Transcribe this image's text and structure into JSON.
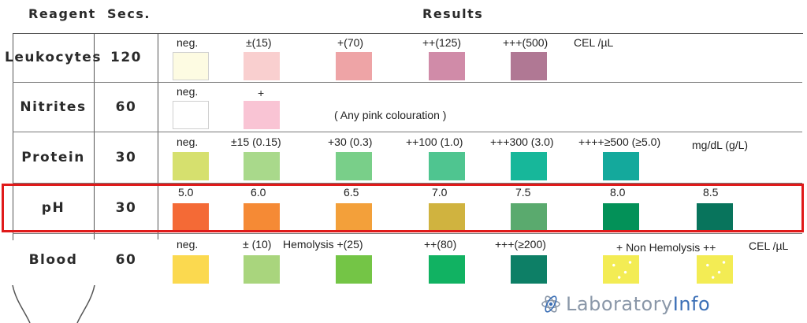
{
  "header": {
    "reagent": "Reagent",
    "secs": "Secs.",
    "results": "Results"
  },
  "rows": [
    {
      "reagent": "Leukocytes",
      "secs": "120",
      "results": [
        {
          "label": "neg.",
          "color": "#fdfbe2"
        },
        {
          "label": "±(15)",
          "color": "#f9cfcf"
        },
        {
          "label": "+(70)",
          "color": "#eea4a6"
        },
        {
          "label": "++(125)",
          "color": "#d08ba8"
        },
        {
          "label": "+++(500)",
          "color": "#b07894"
        }
      ],
      "unit": "CEL /µL"
    },
    {
      "reagent": "Nitrites",
      "secs": "60",
      "results": [
        {
          "label": "neg.",
          "color": "#ffffff"
        },
        {
          "label": "+",
          "color": "#f9c4d4"
        }
      ],
      "note": "( Any pink colouration )"
    },
    {
      "reagent": "Protein",
      "secs": "30",
      "results": [
        {
          "label": "neg.",
          "color": "#d6e06e"
        },
        {
          "label": "±15 (0.15)",
          "color": "#a9d98b"
        },
        {
          "label": "+30 (0.3)",
          "color": "#79cf89"
        },
        {
          "label": "++100 (1.0)",
          "color": "#4fc590"
        },
        {
          "label": "+++300 (3.0)",
          "color": "#17b79a"
        },
        {
          "label": "++++≥500 (≥5.0)",
          "color": "#14a99c"
        }
      ],
      "unit": "mg/dL (g/L)"
    },
    {
      "reagent": "pH",
      "secs": "30",
      "results": [
        {
          "label": "5.0",
          "color": "#f46a36"
        },
        {
          "label": "6.0",
          "color": "#f58a35"
        },
        {
          "label": "6.5",
          "color": "#f3a03a"
        },
        {
          "label": "7.0",
          "color": "#d0b33f"
        },
        {
          "label": "7.5",
          "color": "#5aaa6e"
        },
        {
          "label": "8.0",
          "color": "#039158"
        },
        {
          "label": "8.5",
          "color": "#08745c"
        }
      ],
      "highlighted": true
    },
    {
      "reagent": "Blood",
      "secs": "60",
      "results": [
        {
          "label": "neg.",
          "color": "#fbd94f"
        },
        {
          "label": "± (10)",
          "color": "#a9d57d"
        },
        {
          "label": "Hemolysis +(25)",
          "color": "#74c546"
        },
        {
          "label": "++(80)",
          "color": "#11b262"
        },
        {
          "label": "+++(≥200)",
          "color": "#0d7f66"
        },
        {
          "label": "+ Non Hemolysis ++",
          "color": "#f3ec54"
        },
        {
          "label": "",
          "color": "#f3ec54"
        }
      ],
      "unit": "CEL /µL"
    }
  ],
  "colors": {
    "highlight": "#e01a1a",
    "logo_grey": "#8a97a8",
    "logo_blue": "#3b6fb6"
  },
  "logo": {
    "part1": "Laboratory",
    "part2": "Info",
    "icon": "atom-icon"
  }
}
